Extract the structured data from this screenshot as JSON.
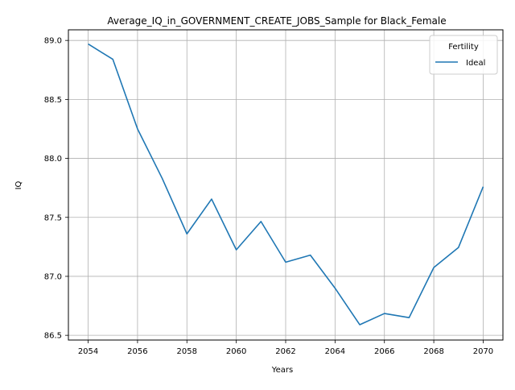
{
  "chart_data": {
    "type": "line",
    "title": "Average_IQ_in_GOVERNMENT_CREATE_JOBS_Sample for Black_Female",
    "xlabel": "Years",
    "ylabel": "IQ",
    "xlim": [
      2053.2,
      2070.8
    ],
    "ylim": [
      86.46,
      89.09
    ],
    "x_ticks": [
      2054,
      2056,
      2058,
      2060,
      2062,
      2064,
      2066,
      2068,
      2070
    ],
    "y_ticks": [
      86.5,
      87.0,
      87.5,
      88.0,
      88.5,
      89.0
    ],
    "y_tick_labels": [
      "86.5",
      "87.0",
      "87.5",
      "88.0",
      "88.5",
      "89.0"
    ],
    "grid": true,
    "legend": {
      "title": "Fertility",
      "position": "top-right"
    },
    "series": [
      {
        "name": "Ideal",
        "color": "#1f77b4",
        "x": [
          2054,
          2055,
          2056,
          2057,
          2058,
          2059,
          2060,
          2061,
          2062,
          2063,
          2064,
          2065,
          2066,
          2067,
          2068,
          2069,
          2070
        ],
        "values": [
          88.97,
          88.84,
          88.25,
          87.83,
          87.36,
          87.655,
          87.225,
          87.465,
          87.12,
          87.18,
          86.9,
          86.59,
          86.685,
          86.65,
          87.075,
          87.245,
          87.76
        ]
      }
    ]
  }
}
